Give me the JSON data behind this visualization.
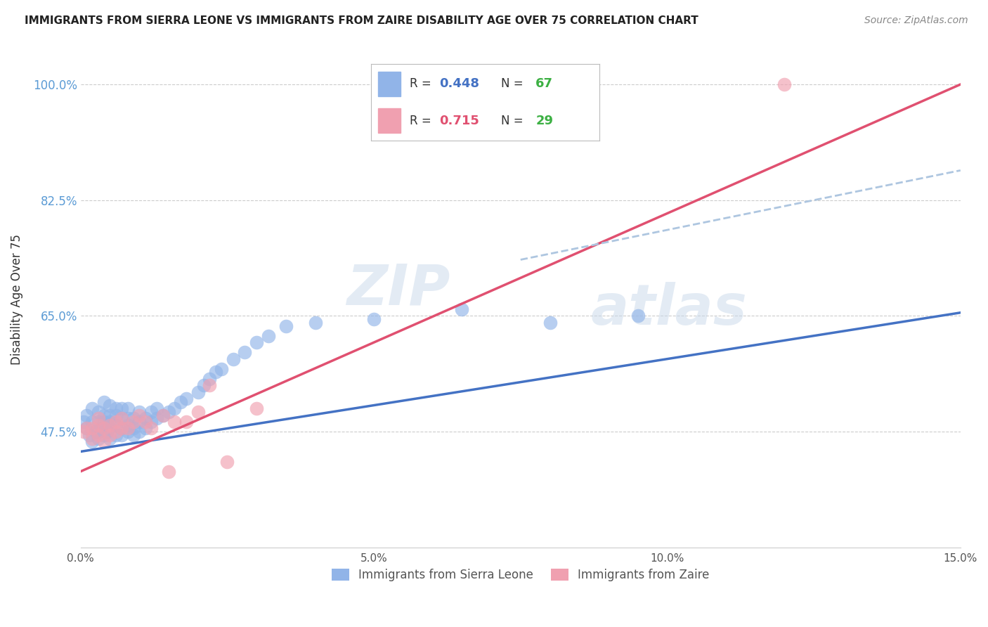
{
  "title": "IMMIGRANTS FROM SIERRA LEONE VS IMMIGRANTS FROM ZAIRE DISABILITY AGE OVER 75 CORRELATION CHART",
  "source": "Source: ZipAtlas.com",
  "ylabel": "Disability Age Over 75",
  "xlim": [
    0.0,
    0.15
  ],
  "ylim": [
    0.3,
    1.05
  ],
  "xticks": [
    0.0,
    0.05,
    0.1,
    0.15
  ],
  "xtick_labels": [
    "0.0%",
    "5.0%",
    "10.0%",
    "15.0%"
  ],
  "yticks": [
    0.475,
    0.65,
    0.825,
    1.0
  ],
  "ytick_labels": [
    "47.5%",
    "65.0%",
    "82.5%",
    "100.0%"
  ],
  "legend_label1": "Immigrants from Sierra Leone",
  "legend_label2": "Immigrants from Zaire",
  "color_sierra": "#91b4e8",
  "color_zaire": "#f0a0b0",
  "color_line_sierra": "#4472C4",
  "color_line_zaire": "#E05070",
  "color_dashed": "#aec6e0",
  "watermark_zip": "ZIP",
  "watermark_atlas": "atlas",
  "background_color": "#ffffff",
  "grid_color": "#cccccc",
  "ytick_color": "#5b9bd5",
  "n_color": "#4CAF50",
  "title_fontsize": 11,
  "sierra_leone_x": [
    0.0005,
    0.001,
    0.001,
    0.0015,
    0.002,
    0.002,
    0.002,
    0.0025,
    0.003,
    0.003,
    0.003,
    0.003,
    0.0035,
    0.004,
    0.004,
    0.004,
    0.004,
    0.0045,
    0.005,
    0.005,
    0.005,
    0.005,
    0.005,
    0.006,
    0.006,
    0.006,
    0.006,
    0.007,
    0.007,
    0.007,
    0.007,
    0.008,
    0.008,
    0.008,
    0.008,
    0.009,
    0.009,
    0.009,
    0.01,
    0.01,
    0.01,
    0.011,
    0.011,
    0.012,
    0.012,
    0.013,
    0.013,
    0.014,
    0.015,
    0.016,
    0.017,
    0.018,
    0.02,
    0.021,
    0.022,
    0.023,
    0.024,
    0.026,
    0.028,
    0.03,
    0.032,
    0.035,
    0.04,
    0.05,
    0.065,
    0.08,
    0.095
  ],
  "sierra_leone_y": [
    0.49,
    0.48,
    0.5,
    0.47,
    0.46,
    0.49,
    0.51,
    0.475,
    0.465,
    0.475,
    0.49,
    0.505,
    0.48,
    0.47,
    0.49,
    0.5,
    0.52,
    0.475,
    0.465,
    0.48,
    0.49,
    0.5,
    0.515,
    0.47,
    0.485,
    0.5,
    0.51,
    0.47,
    0.48,
    0.495,
    0.51,
    0.475,
    0.485,
    0.495,
    0.51,
    0.47,
    0.48,
    0.495,
    0.475,
    0.49,
    0.505,
    0.48,
    0.495,
    0.49,
    0.505,
    0.495,
    0.51,
    0.5,
    0.505,
    0.51,
    0.52,
    0.525,
    0.535,
    0.545,
    0.555,
    0.565,
    0.57,
    0.585,
    0.595,
    0.61,
    0.62,
    0.635,
    0.64,
    0.645,
    0.66,
    0.64,
    0.65
  ],
  "zaire_x": [
    0.0005,
    0.001,
    0.002,
    0.002,
    0.003,
    0.003,
    0.003,
    0.004,
    0.004,
    0.005,
    0.005,
    0.006,
    0.006,
    0.007,
    0.007,
    0.008,
    0.009,
    0.01,
    0.011,
    0.012,
    0.014,
    0.015,
    0.016,
    0.018,
    0.02,
    0.022,
    0.025,
    0.03,
    0.12
  ],
  "zaire_y": [
    0.475,
    0.48,
    0.465,
    0.48,
    0.47,
    0.485,
    0.495,
    0.46,
    0.48,
    0.47,
    0.485,
    0.475,
    0.49,
    0.48,
    0.495,
    0.48,
    0.49,
    0.5,
    0.49,
    0.48,
    0.5,
    0.415,
    0.49,
    0.49,
    0.505,
    0.545,
    0.43,
    0.51,
    1.0
  ],
  "sierra_line_x0": 0.0,
  "sierra_line_x1": 0.15,
  "sierra_line_y0": 0.445,
  "sierra_line_y1": 0.655,
  "zaire_line_x0": 0.0,
  "zaire_line_x1": 0.15,
  "zaire_line_y0": 0.415,
  "zaire_line_y1": 1.0,
  "dashed_line_x0": 0.075,
  "dashed_line_x1": 0.15,
  "dashed_line_y0": 0.735,
  "dashed_line_y1": 0.87
}
